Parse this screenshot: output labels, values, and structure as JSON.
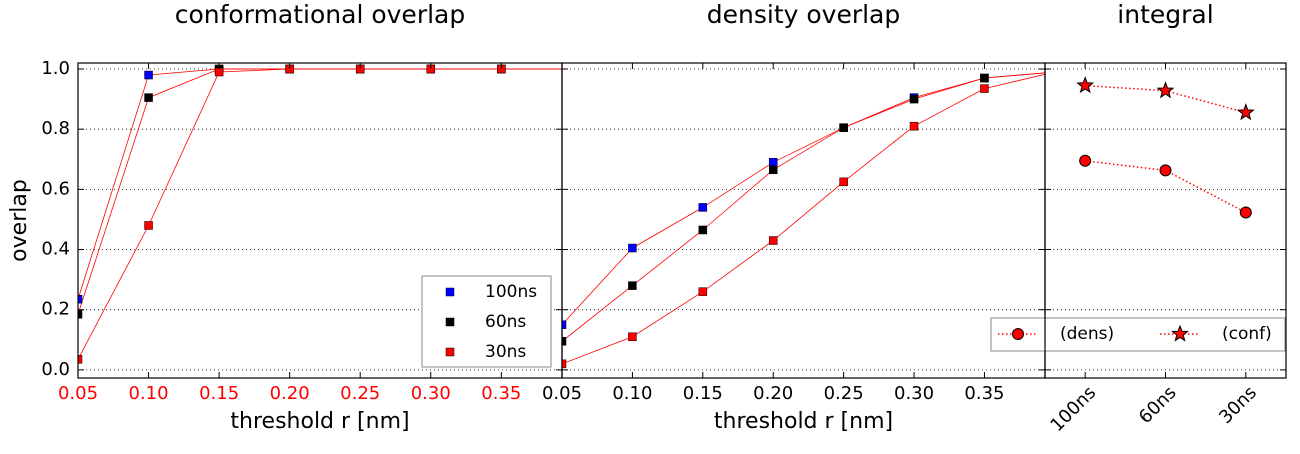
{
  "chart_data": [
    {
      "type": "line",
      "title": "conformational overlap",
      "xlabel": "threshold r [nm]",
      "ylabel": "overlap",
      "x": [
        0.05,
        0.1,
        0.15,
        0.2,
        0.25,
        0.3,
        0.35,
        0.4
      ],
      "series": [
        {
          "name": "100ns",
          "color": "#0000ff",
          "values": [
            0.235,
            0.98,
            1.0,
            1.0,
            1.0,
            1.0,
            1.0,
            1.0
          ]
        },
        {
          "name": "60ns",
          "color": "#000000",
          "values": [
            0.185,
            0.905,
            1.0,
            1.0,
            1.0,
            1.0,
            1.0,
            1.0
          ]
        },
        {
          "name": "30ns",
          "color": "#ff0000",
          "values": [
            0.035,
            0.48,
            0.99,
            1.0,
            1.0,
            1.0,
            1.0,
            1.0
          ]
        }
      ],
      "line_color": "#ff0000",
      "tick_color": "#ff0000",
      "xlim": [
        0.05,
        0.393
      ],
      "xticks": [
        0.05,
        {
          "value": 0.1,
          "label": "0.10"
        },
        0.15,
        {
          "value": 0.2,
          "label": "0.20"
        },
        0.25,
        {
          "value": 0.3,
          "label": "0.30"
        },
        0.35
      ],
      "ylim": [
        -0.027,
        1.02
      ],
      "yticks": [
        {
          "value": 0,
          "label": "0.0"
        },
        0.2,
        0.4,
        0.6,
        0.8,
        {
          "value": 1,
          "label": "1.0"
        }
      ],
      "grid": true,
      "legend": "lower right"
    },
    {
      "type": "line",
      "title": "density overlap",
      "xlabel": "threshold r [nm]",
      "x": [
        0.05,
        0.1,
        0.15,
        0.2,
        0.25,
        0.3,
        0.35,
        0.4
      ],
      "series": [
        {
          "name": "100ns",
          "color": "#0000ff",
          "values": [
            0.15,
            0.405,
            0.54,
            0.69,
            0.805,
            0.905,
            0.97,
            0.99
          ]
        },
        {
          "name": "60ns",
          "color": "#000000",
          "values": [
            0.095,
            0.28,
            0.465,
            0.665,
            0.805,
            0.9,
            0.97,
            0.99
          ]
        },
        {
          "name": "30ns",
          "color": "#ff0000",
          "values": [
            0.02,
            0.11,
            0.26,
            0.43,
            0.625,
            0.81,
            0.935,
            0.99
          ]
        }
      ],
      "line_color": "#ff0000",
      "tick_color": "#000000",
      "xlim": [
        0.05,
        0.393
      ],
      "xticks": [
        0.05,
        {
          "value": 0.1,
          "label": "0.10"
        },
        0.15,
        {
          "value": 0.2,
          "label": "0.20"
        },
        0.25,
        {
          "value": 0.3,
          "label": "0.30"
        },
        0.35
      ],
      "ylim": [
        -0.027,
        1.02
      ],
      "yticks": [
        0,
        0.2,
        0.4,
        0.6,
        0.8,
        1
      ],
      "grid": true
    },
    {
      "type": "category-line",
      "title": "integral",
      "categories": [
        "100ns",
        "60ns",
        "30ns"
      ],
      "series": [
        {
          "name": "(dens)",
          "color": "#ff0000",
          "marker": "circle",
          "values": [
            0.695,
            0.663,
            0.523
          ]
        },
        {
          "name": "(conf)",
          "color": "#ff0000",
          "marker": "star",
          "values": [
            0.945,
            0.928,
            0.855
          ]
        }
      ],
      "tick_color": "#000000",
      "ylim": [
        -0.027,
        1.02
      ],
      "yticks": [
        0,
        0.2,
        0.4,
        0.6,
        0.8,
        1
      ],
      "grid": true,
      "legend": "lower right"
    }
  ]
}
